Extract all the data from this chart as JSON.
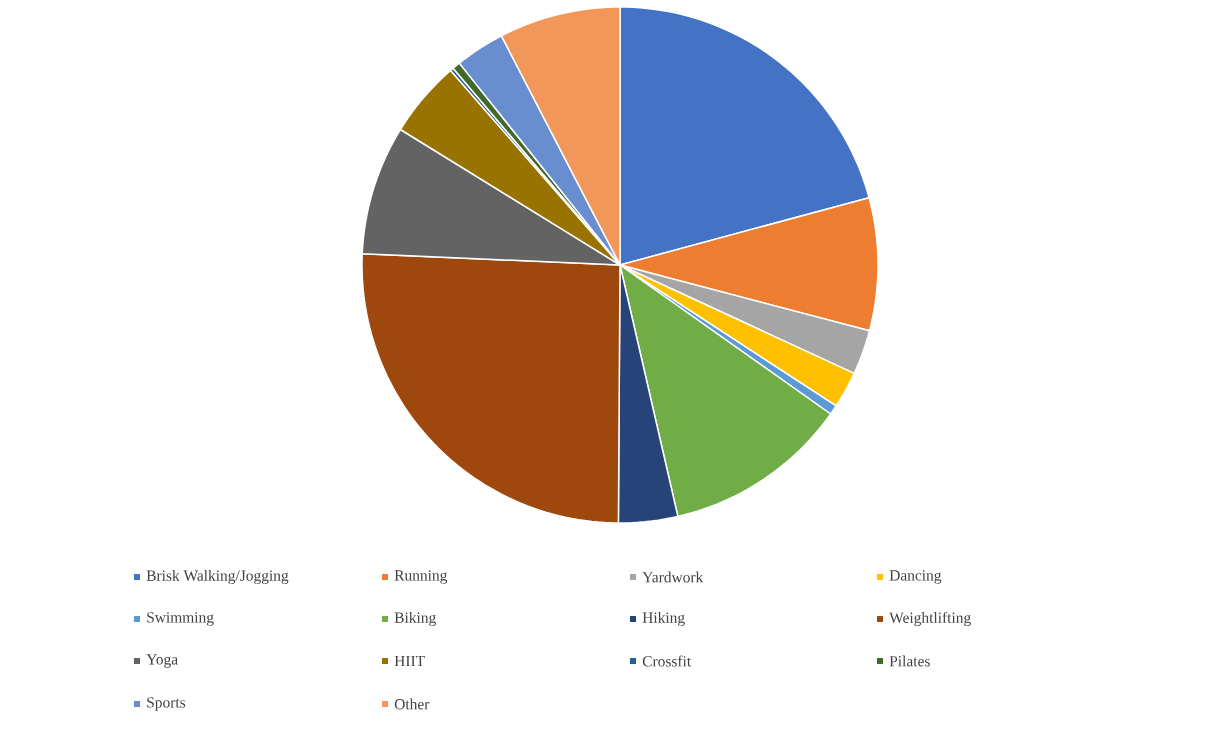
{
  "chart_data": {
    "type": "pie",
    "categories": [
      "Brisk Walking/Jogging",
      "Running",
      "Yardwork",
      "Dancing",
      "Swimming",
      "Biking",
      "Hiking",
      "Weightlifting",
      "Yoga",
      "HIIT",
      "Crossfit",
      "Pilates",
      "Sports",
      "Other"
    ],
    "values": [
      20.8,
      8.3,
      2.8,
      2.3,
      0.6,
      11.6,
      3.7,
      25.6,
      8.1,
      4.8,
      0.2,
      0.5,
      3.1,
      7.6
    ],
    "colors": [
      "#4472c4",
      "#ed7d31",
      "#a5a5a5",
      "#ffc000",
      "#5b9bd5",
      "#70ad47",
      "#264478",
      "#9e480e",
      "#636363",
      "#997300",
      "#255e91",
      "#43682b",
      "#698ed0",
      "#f1975a"
    ],
    "legend": "bottom"
  }
}
